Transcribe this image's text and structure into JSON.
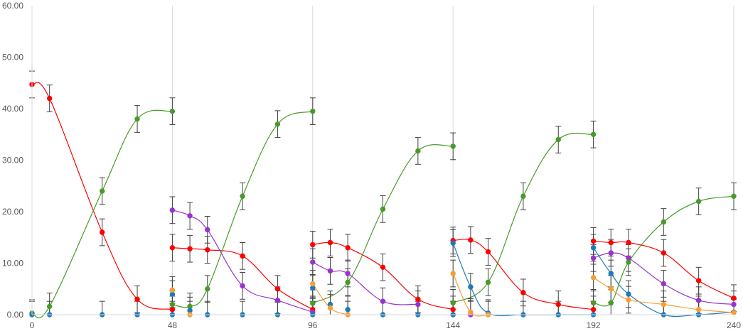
{
  "chart_data": {
    "type": "scatter",
    "title": "",
    "xlabel": "",
    "ylabel": "",
    "xlim": [
      0,
      240
    ],
    "ylim": [
      0,
      60
    ],
    "grid": "vertical-major",
    "legend": "none",
    "x_ticks": [
      "0",
      "48",
      "96",
      "144",
      "192",
      "240"
    ],
    "y_ticks": [
      "0.00",
      "10.00",
      "20.00",
      "30.00",
      "40.00",
      "50.00",
      "60.00"
    ],
    "error_bar": 2.6,
    "series": [
      {
        "color": "#ff0000",
        "points": [
          [
            0,
            44.7
          ],
          [
            6,
            42
          ],
          [
            24,
            16
          ],
          [
            36,
            3
          ],
          [
            48,
            1
          ],
          [
            48,
            13
          ],
          [
            54,
            12.8
          ],
          [
            60,
            12.6
          ],
          [
            72,
            11.4
          ],
          [
            84,
            5
          ],
          [
            96,
            1
          ],
          [
            96,
            13.6
          ],
          [
            102,
            14
          ],
          [
            108,
            13
          ],
          [
            120,
            9.2
          ],
          [
            132,
            3
          ],
          [
            144,
            1
          ],
          [
            144,
            14.4
          ],
          [
            150,
            14.5
          ],
          [
            156,
            12.2
          ],
          [
            168,
            4.3
          ],
          [
            180,
            2
          ],
          [
            192,
            1
          ],
          [
            192,
            14.3
          ],
          [
            198,
            14
          ],
          [
            204,
            14
          ],
          [
            216,
            12
          ],
          [
            228,
            6.6
          ],
          [
            240,
            3.2
          ]
        ],
        "segments": [
          [
            0,
            4
          ],
          [
            5,
            10
          ],
          [
            11,
            16
          ],
          [
            17,
            22
          ],
          [
            23,
            28
          ]
        ]
      },
      {
        "color": "#9933cc",
        "points": [
          [
            48,
            20.3
          ],
          [
            54,
            19.2
          ],
          [
            60,
            16.5
          ],
          [
            72,
            5.6
          ],
          [
            84,
            2.8
          ],
          [
            96,
            0.5
          ],
          [
            96,
            10.2
          ],
          [
            102,
            8.5
          ],
          [
            108,
            8
          ],
          [
            120,
            2.6
          ],
          [
            132,
            2
          ],
          [
            144,
            0
          ],
          [
            150,
            0
          ],
          [
            192,
            11
          ],
          [
            198,
            12
          ],
          [
            204,
            11
          ],
          [
            216,
            6
          ],
          [
            228,
            2.8
          ],
          [
            240,
            2
          ]
        ],
        "segments": [
          [
            0,
            5
          ],
          [
            6,
            10
          ],
          [
            13,
            18
          ]
        ]
      },
      {
        "color": "#4a9a2a",
        "points": [
          [
            0,
            0.3
          ],
          [
            6,
            1.6
          ],
          [
            24,
            24
          ],
          [
            36,
            38
          ],
          [
            48,
            39.5
          ],
          [
            48,
            2
          ],
          [
            54,
            1.6
          ],
          [
            60,
            5
          ],
          [
            72,
            23
          ],
          [
            84,
            37
          ],
          [
            96,
            39.5
          ],
          [
            96,
            2.2
          ],
          [
            108,
            6.3
          ],
          [
            120,
            20.5
          ],
          [
            132,
            31.8
          ],
          [
            144,
            32.7
          ],
          [
            144,
            2.3
          ],
          [
            156,
            6.3
          ],
          [
            168,
            23
          ],
          [
            180,
            34
          ],
          [
            192,
            35
          ],
          [
            192,
            2.3
          ],
          [
            198,
            2.3
          ],
          [
            204,
            10.2
          ],
          [
            216,
            18
          ],
          [
            228,
            22
          ],
          [
            240,
            23
          ]
        ],
        "segments": [
          [
            0,
            4
          ],
          [
            5,
            10
          ],
          [
            11,
            15
          ],
          [
            16,
            20
          ],
          [
            21,
            26
          ]
        ]
      },
      {
        "color": "#1f7ab8",
        "points": [
          [
            0,
            0
          ],
          [
            6,
            0
          ],
          [
            24,
            0
          ],
          [
            36,
            0
          ],
          [
            48,
            0
          ],
          [
            48,
            4
          ],
          [
            54,
            0.8
          ],
          [
            60,
            0
          ],
          [
            72,
            0
          ],
          [
            84,
            0
          ],
          [
            96,
            0
          ],
          [
            96,
            5.2
          ],
          [
            102,
            2
          ],
          [
            108,
            1
          ],
          [
            120,
            0
          ],
          [
            132,
            0
          ],
          [
            144,
            0
          ],
          [
            144,
            13.9
          ],
          [
            150,
            5.4
          ],
          [
            156,
            0.3
          ],
          [
            168,
            0
          ],
          [
            180,
            0
          ],
          [
            192,
            0
          ],
          [
            192,
            13
          ],
          [
            198,
            8
          ],
          [
            204,
            4
          ],
          [
            216,
            0
          ],
          [
            228,
            0
          ],
          [
            240,
            0.5
          ]
        ],
        "segments": [
          [
            17,
            22
          ],
          [
            23,
            28
          ]
        ]
      },
      {
        "color": "#f4a033",
        "points": [
          [
            48,
            4.8
          ],
          [
            54,
            0
          ],
          [
            96,
            6
          ],
          [
            102,
            1.3
          ],
          [
            108,
            0
          ],
          [
            144,
            8
          ],
          [
            150,
            0.5
          ],
          [
            156,
            0
          ],
          [
            192,
            7.2
          ],
          [
            198,
            5
          ],
          [
            204,
            2.9
          ],
          [
            216,
            2
          ],
          [
            228,
            1
          ],
          [
            240,
            0.4
          ]
        ],
        "segments": [
          [
            2,
            4
          ],
          [
            5,
            7
          ],
          [
            8,
            13
          ]
        ]
      }
    ]
  }
}
